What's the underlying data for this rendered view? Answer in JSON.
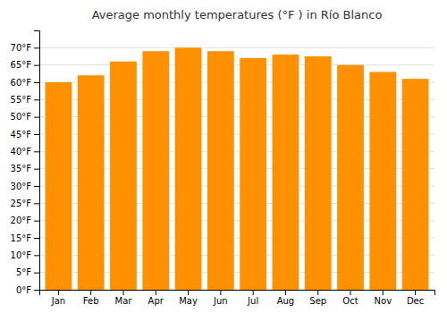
{
  "chart_data": {
    "type": "bar",
    "title": "Average monthly temperatures (°F ) in Río Blanco",
    "categories": [
      "Jan",
      "Feb",
      "Mar",
      "Apr",
      "May",
      "Jun",
      "Jul",
      "Aug",
      "Sep",
      "Oct",
      "Nov",
      "Dec"
    ],
    "values": [
      60,
      62,
      66,
      69,
      70,
      69,
      67,
      68,
      67.5,
      65,
      63,
      61
    ],
    "color": "#FF9000",
    "ylim": [
      0,
      75
    ],
    "yticks": [
      {
        "value": 0,
        "label": "0°F"
      },
      {
        "value": 5,
        "label": "5°F"
      },
      {
        "value": 10,
        "label": "10°F"
      },
      {
        "value": 15,
        "label": "15°F"
      },
      {
        "value": 20,
        "label": "20°F"
      },
      {
        "value": 25,
        "label": "25°F"
      },
      {
        "value": 30,
        "label": "30°F"
      },
      {
        "value": 35,
        "label": "35°F"
      },
      {
        "value": 40,
        "label": "40°F"
      },
      {
        "value": 45,
        "label": "45°F"
      },
      {
        "value": 50,
        "label": "50°F"
      },
      {
        "value": 55,
        "label": "55°F"
      },
      {
        "value": 60,
        "label": "60°F"
      },
      {
        "value": 65,
        "label": "65°F"
      },
      {
        "value": 70,
        "label": "70°F"
      }
    ],
    "grid": true
  }
}
